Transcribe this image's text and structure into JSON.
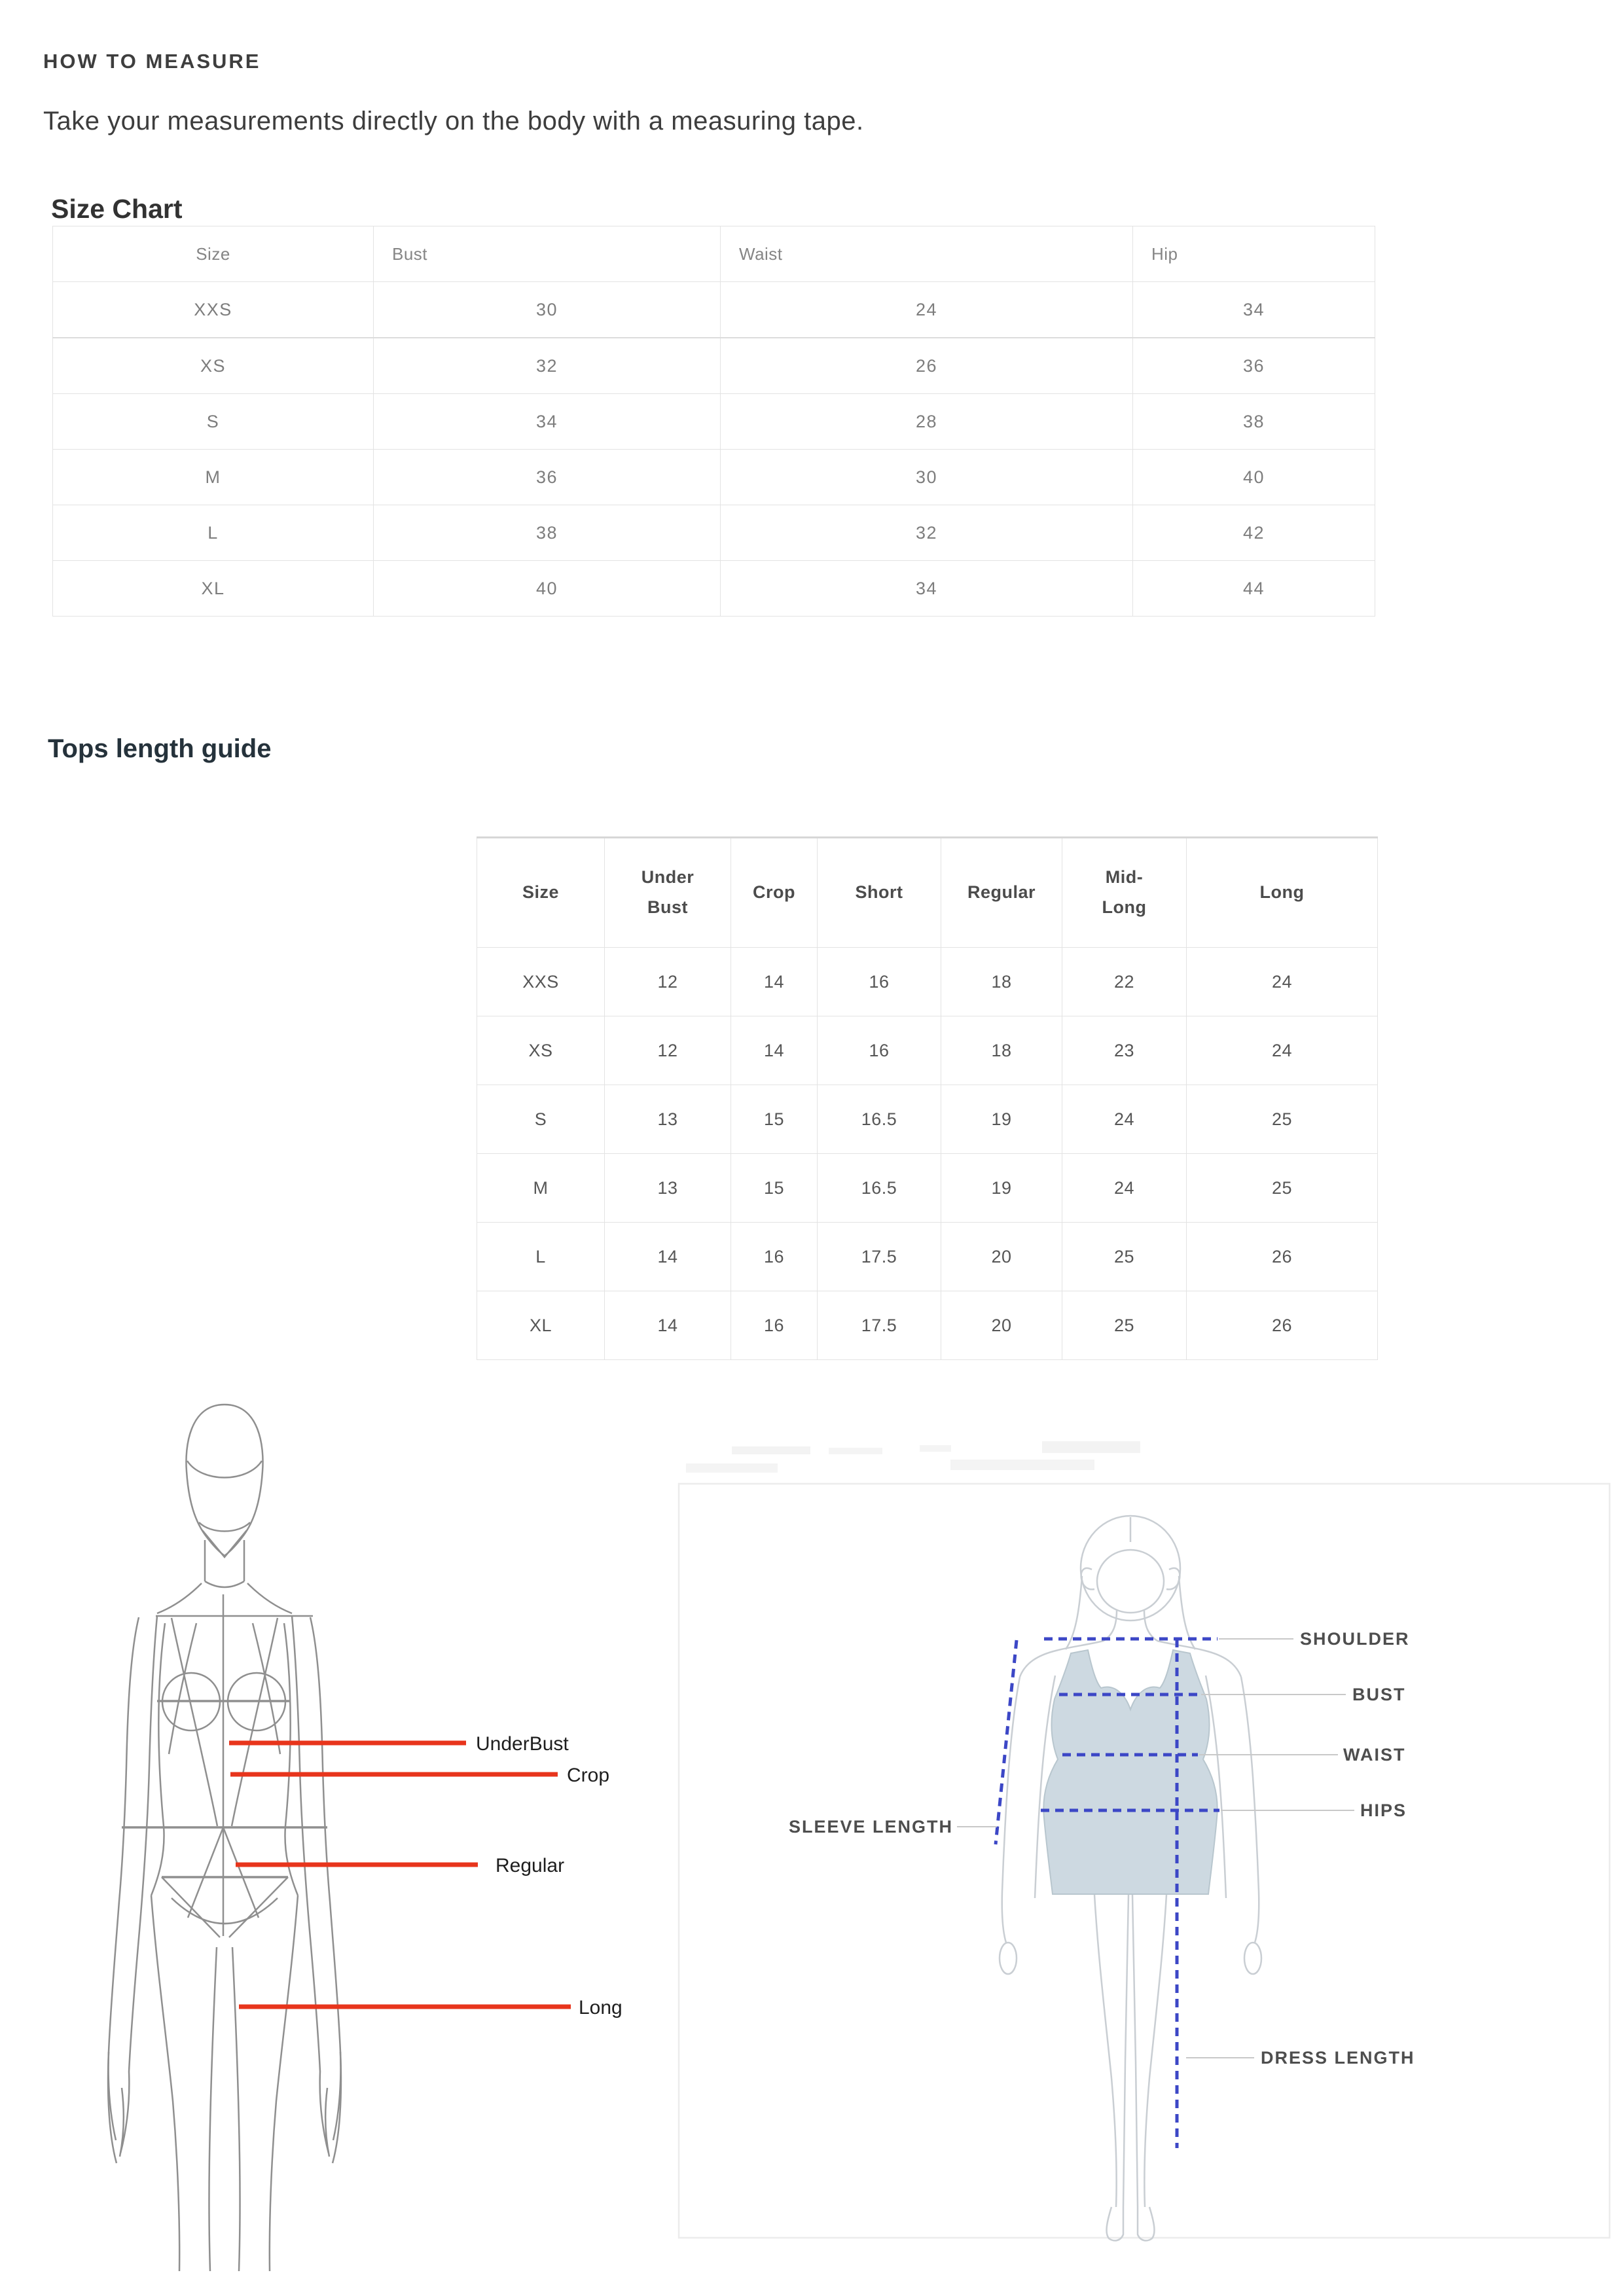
{
  "header": {
    "title": "HOW TO MEASURE",
    "subtitle": "Take your measurements directly on the body with a measuring tape."
  },
  "size_chart": {
    "heading": "Size Chart",
    "columns": [
      "Size",
      "Bust",
      "Waist",
      "Hip"
    ],
    "rows": [
      [
        "XXS",
        "30",
        "24",
        "34"
      ],
      [
        "XS",
        "32",
        "26",
        "36"
      ],
      [
        "S",
        "34",
        "28",
        "38"
      ],
      [
        "M",
        "36",
        "30",
        "40"
      ],
      [
        "L",
        "38",
        "32",
        "42"
      ],
      [
        "XL",
        "40",
        "34",
        "44"
      ]
    ]
  },
  "tops_length_guide": {
    "heading": "Tops length guide",
    "columns": [
      "Size",
      "Under\nBust",
      "Crop",
      "Short",
      "Regular",
      "Mid-\nLong",
      "Long"
    ],
    "rows": [
      [
        "XXS",
        "12",
        "14",
        "16",
        "18",
        "22",
        "24"
      ],
      [
        "XS",
        "12",
        "14",
        "16",
        "18",
        "23",
        "24"
      ],
      [
        "S",
        "13",
        "15",
        "16.5",
        "19",
        "24",
        "25"
      ],
      [
        "M",
        "13",
        "15",
        "16.5",
        "19",
        "24",
        "25"
      ],
      [
        "L",
        "14",
        "16",
        "17.5",
        "20",
        "25",
        "26"
      ],
      [
        "XL",
        "14",
        "16",
        "17.5",
        "20",
        "25",
        "26"
      ]
    ]
  },
  "tops_diagram": {
    "labels": {
      "underbust": "UnderBust",
      "crop": "Crop",
      "regular": "Regular",
      "long": "Long"
    },
    "line_color": "#e8351c"
  },
  "dress_diagram": {
    "labels": {
      "shoulder": "SHOULDER",
      "bust": "BUST",
      "waist": "WAIST",
      "hips": "HIPS",
      "sleeve_length": "SLEEVE LENGTH",
      "dress_length": "DRESS LENGTH"
    },
    "dash_color": "#3c47c6",
    "dress_fill": "#cdd9e1",
    "outline_color": "#c9ced3"
  }
}
